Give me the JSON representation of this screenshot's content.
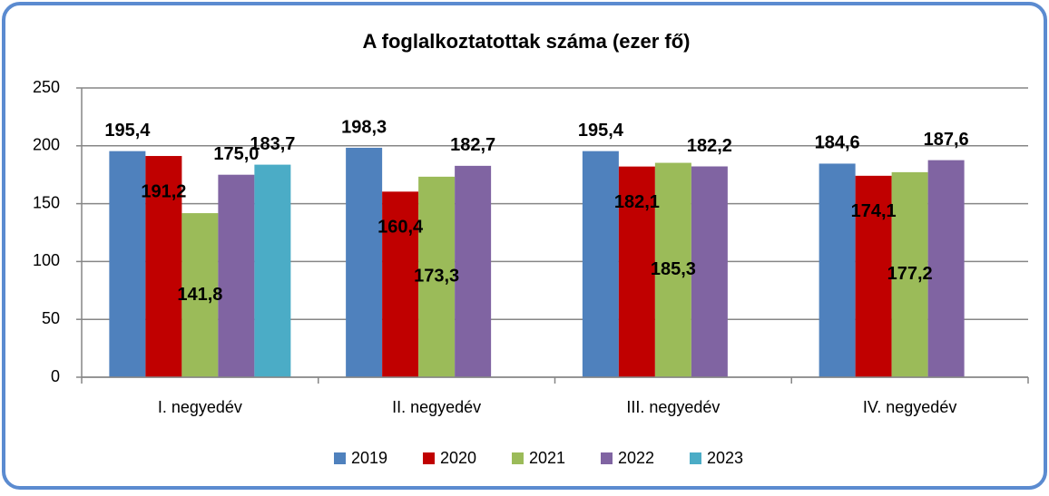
{
  "chart_data": {
    "type": "bar",
    "title": "A foglalkoztatottak száma (ezer fő)",
    "categories": [
      "I. negyedév",
      "II. negyedév",
      "III. negyedév",
      "IV. negyedév"
    ],
    "series": [
      {
        "name": "2019",
        "color": "#4f81bd",
        "values": [
          195.4,
          198.3,
          195.4,
          184.6
        ],
        "value_labels": [
          "195,4",
          "198,3",
          "195,4",
          "184,6"
        ]
      },
      {
        "name": "2020",
        "color": "#c00000",
        "values": [
          191.2,
          160.4,
          182.1,
          174.1
        ],
        "value_labels": [
          "191,2",
          "160,4",
          "182,1",
          "174,1"
        ]
      },
      {
        "name": "2021",
        "color": "#9bbb59",
        "values": [
          141.8,
          173.3,
          185.3,
          177.2
        ],
        "value_labels": [
          "141,8",
          "173,3",
          "185,3",
          "177,2"
        ]
      },
      {
        "name": "2022",
        "color": "#8064a2",
        "values": [
          175.0,
          182.7,
          182.2,
          187.6
        ],
        "value_labels": [
          "175,0",
          "182,7",
          "182,2",
          "187,6"
        ]
      },
      {
        "name": "2023",
        "color": "#4bacc6",
        "values": [
          183.7,
          null,
          null,
          null
        ],
        "value_labels": [
          "183,7",
          null,
          null,
          null
        ]
      }
    ],
    "ylim": [
      0,
      250
    ],
    "yticks": [
      0,
      50,
      100,
      150,
      200,
      250
    ],
    "grid": true,
    "legend": "bottom"
  }
}
